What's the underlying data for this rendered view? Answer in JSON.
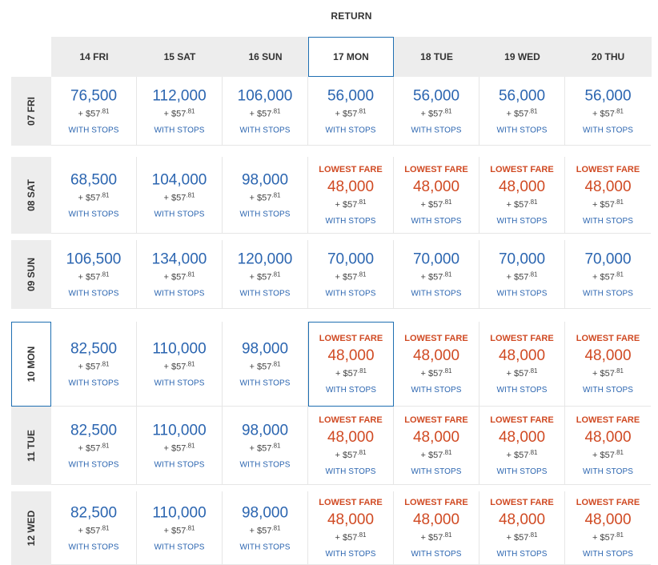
{
  "return_title": "RETURN",
  "selected_return_index": 3,
  "selected_depart_index": 3,
  "return_dates": [
    "14 FRI",
    "15 SAT",
    "16 SUN",
    "17 MON",
    "18 TUE",
    "19 WED",
    "20 THU"
  ],
  "rows": [
    {
      "label": "07 FRI",
      "cells": [
        {
          "miles": "76,500",
          "tax": "+ $57",
          "cents": ".81",
          "stops": "WITH STOPS"
        },
        {
          "miles": "112,000",
          "tax": "+ $57",
          "cents": ".81",
          "stops": "WITH STOPS"
        },
        {
          "miles": "106,000",
          "tax": "+ $57",
          "cents": ".81",
          "stops": "WITH STOPS"
        },
        {
          "miles": "56,000",
          "tax": "+ $57",
          "cents": ".81",
          "stops": "WITH STOPS"
        },
        {
          "miles": "56,000",
          "tax": "+ $57",
          "cents": ".81",
          "stops": "WITH STOPS"
        },
        {
          "miles": "56,000",
          "tax": "+ $57",
          "cents": ".81",
          "stops": "WITH STOPS"
        },
        {
          "miles": "56,000",
          "tax": "+ $57",
          "cents": ".81",
          "stops": "WITH STOPS"
        }
      ]
    },
    {
      "label": "08 SAT",
      "cells": [
        {
          "miles": "68,500",
          "tax": "+ $57",
          "cents": ".81",
          "stops": "WITH STOPS"
        },
        {
          "miles": "104,000",
          "tax": "+ $57",
          "cents": ".81",
          "stops": "WITH STOPS"
        },
        {
          "miles": "98,000",
          "tax": "+ $57",
          "cents": ".81",
          "stops": "WITH STOPS"
        },
        {
          "lowest": "LOWEST FARE",
          "miles": "48,000",
          "tax": "+ $57",
          "cents": ".81",
          "stops": "WITH STOPS"
        },
        {
          "lowest": "LOWEST FARE",
          "miles": "48,000",
          "tax": "+ $57",
          "cents": ".81",
          "stops": "WITH STOPS"
        },
        {
          "lowest": "LOWEST FARE",
          "miles": "48,000",
          "tax": "+ $57",
          "cents": ".81",
          "stops": "WITH STOPS"
        },
        {
          "lowest": "LOWEST FARE",
          "miles": "48,000",
          "tax": "+ $57",
          "cents": ".81",
          "stops": "WITH STOPS"
        }
      ]
    },
    {
      "label": "09 SUN",
      "cells": [
        {
          "miles": "106,500",
          "tax": "+ $57",
          "cents": ".81",
          "stops": "WITH STOPS"
        },
        {
          "miles": "134,000",
          "tax": "+ $57",
          "cents": ".81",
          "stops": "WITH STOPS"
        },
        {
          "miles": "120,000",
          "tax": "+ $57",
          "cents": ".81",
          "stops": "WITH STOPS"
        },
        {
          "miles": "70,000",
          "tax": "+ $57",
          "cents": ".81",
          "stops": "WITH STOPS"
        },
        {
          "miles": "70,000",
          "tax": "+ $57",
          "cents": ".81",
          "stops": "WITH STOPS"
        },
        {
          "miles": "70,000",
          "tax": "+ $57",
          "cents": ".81",
          "stops": "WITH STOPS"
        },
        {
          "miles": "70,000",
          "tax": "+ $57",
          "cents": ".81",
          "stops": "WITH STOPS"
        }
      ]
    },
    {
      "label": "10 MON",
      "cells": [
        {
          "miles": "82,500",
          "tax": "+ $57",
          "cents": ".81",
          "stops": "WITH STOPS"
        },
        {
          "miles": "110,000",
          "tax": "+ $57",
          "cents": ".81",
          "stops": "WITH STOPS"
        },
        {
          "miles": "98,000",
          "tax": "+ $57",
          "cents": ".81",
          "stops": "WITH STOPS"
        },
        {
          "lowest": "LOWEST FARE",
          "miles": "48,000",
          "tax": "+ $57",
          "cents": ".81",
          "stops": "WITH STOPS"
        },
        {
          "lowest": "LOWEST FARE",
          "miles": "48,000",
          "tax": "+ $57",
          "cents": ".81",
          "stops": "WITH STOPS"
        },
        {
          "lowest": "LOWEST FARE",
          "miles": "48,000",
          "tax": "+ $57",
          "cents": ".81",
          "stops": "WITH STOPS"
        },
        {
          "lowest": "LOWEST FARE",
          "miles": "48,000",
          "tax": "+ $57",
          "cents": ".81",
          "stops": "WITH STOPS"
        }
      ]
    },
    {
      "label": "11 TUE",
      "cells": [
        {
          "miles": "82,500",
          "tax": "+ $57",
          "cents": ".81",
          "stops": "WITH STOPS"
        },
        {
          "miles": "110,000",
          "tax": "+ $57",
          "cents": ".81",
          "stops": "WITH STOPS"
        },
        {
          "miles": "98,000",
          "tax": "+ $57",
          "cents": ".81",
          "stops": "WITH STOPS"
        },
        {
          "lowest": "LOWEST FARE",
          "miles": "48,000",
          "tax": "+ $57",
          "cents": ".81",
          "stops": "WITH STOPS"
        },
        {
          "lowest": "LOWEST FARE",
          "miles": "48,000",
          "tax": "+ $57",
          "cents": ".81",
          "stops": "WITH STOPS"
        },
        {
          "lowest": "LOWEST FARE",
          "miles": "48,000",
          "tax": "+ $57",
          "cents": ".81",
          "stops": "WITH STOPS"
        },
        {
          "lowest": "LOWEST FARE",
          "miles": "48,000",
          "tax": "+ $57",
          "cents": ".81",
          "stops": "WITH STOPS"
        }
      ]
    },
    {
      "label": "12 WED",
      "cells": [
        {
          "miles": "82,500",
          "tax": "+ $57",
          "cents": ".81",
          "stops": "WITH STOPS"
        },
        {
          "miles": "110,000",
          "tax": "+ $57",
          "cents": ".81",
          "stops": "WITH STOPS"
        },
        {
          "miles": "98,000",
          "tax": "+ $57",
          "cents": ".81",
          "stops": "WITH STOPS"
        },
        {
          "lowest": "LOWEST FARE",
          "miles": "48,000",
          "tax": "+ $57",
          "cents": ".81",
          "stops": "WITH STOPS"
        },
        {
          "lowest": "LOWEST FARE",
          "miles": "48,000",
          "tax": "+ $57",
          "cents": ".81",
          "stops": "WITH STOPS"
        },
        {
          "lowest": "LOWEST FARE",
          "miles": "48,000",
          "tax": "+ $57",
          "cents": ".81",
          "stops": "WITH STOPS"
        },
        {
          "lowest": "LOWEST FARE",
          "miles": "48,000",
          "tax": "+ $57",
          "cents": ".81",
          "stops": "WITH STOPS"
        }
      ]
    }
  ]
}
